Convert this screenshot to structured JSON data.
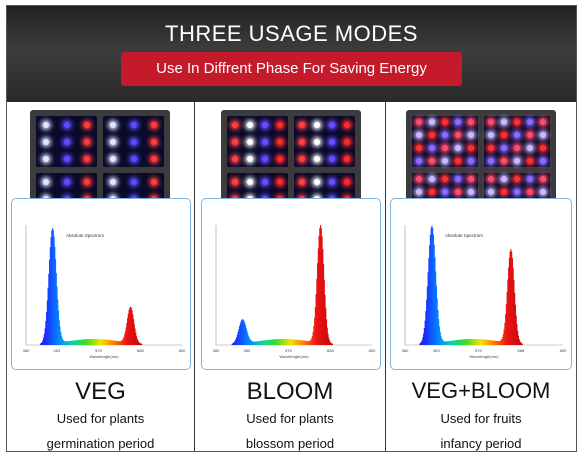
{
  "header": {
    "title": "THREE USAGE MODES",
    "banner": "Use In Diffrent Phase For Saving Energy"
  },
  "colors": {
    "banner": "#c41a2a",
    "header_bg": "#2f2f2f",
    "spectrum_border": "#7fb4e0"
  },
  "modes": [
    {
      "name": "VEG",
      "line1": "Used for plants",
      "line2": "germination period",
      "spectrum_label": "Absolute Spectrum",
      "axis_label": "Wavelength(nm)",
      "x_ticks": [
        "380",
        "463",
        "575",
        "688",
        "800"
      ],
      "peaks": [
        {
          "nm": 450,
          "level": 0.96
        },
        {
          "nm": 660,
          "level": 0.3
        }
      ]
    },
    {
      "name": "BLOOM",
      "line1": "Used for plants",
      "line2": "blossom period",
      "spectrum_label": "",
      "axis_label": "Wavelength(nm)",
      "x_ticks": [
        "380",
        "463",
        "575",
        "688",
        "800"
      ],
      "peaks": [
        {
          "nm": 450,
          "level": 0.2
        },
        {
          "nm": 660,
          "level": 0.98
        }
      ]
    },
    {
      "name": "VEG+BLOOM",
      "line1": "Used for fruits",
      "line2": "infancy period",
      "spectrum_label": "Absolute Spectrum",
      "axis_label": "Wavelength(nm)",
      "x_ticks": [
        "380",
        "463",
        "575",
        "688",
        "800"
      ],
      "peaks": [
        {
          "nm": 450,
          "level": 0.98
        },
        {
          "nm": 660,
          "level": 0.78
        }
      ]
    }
  ]
}
